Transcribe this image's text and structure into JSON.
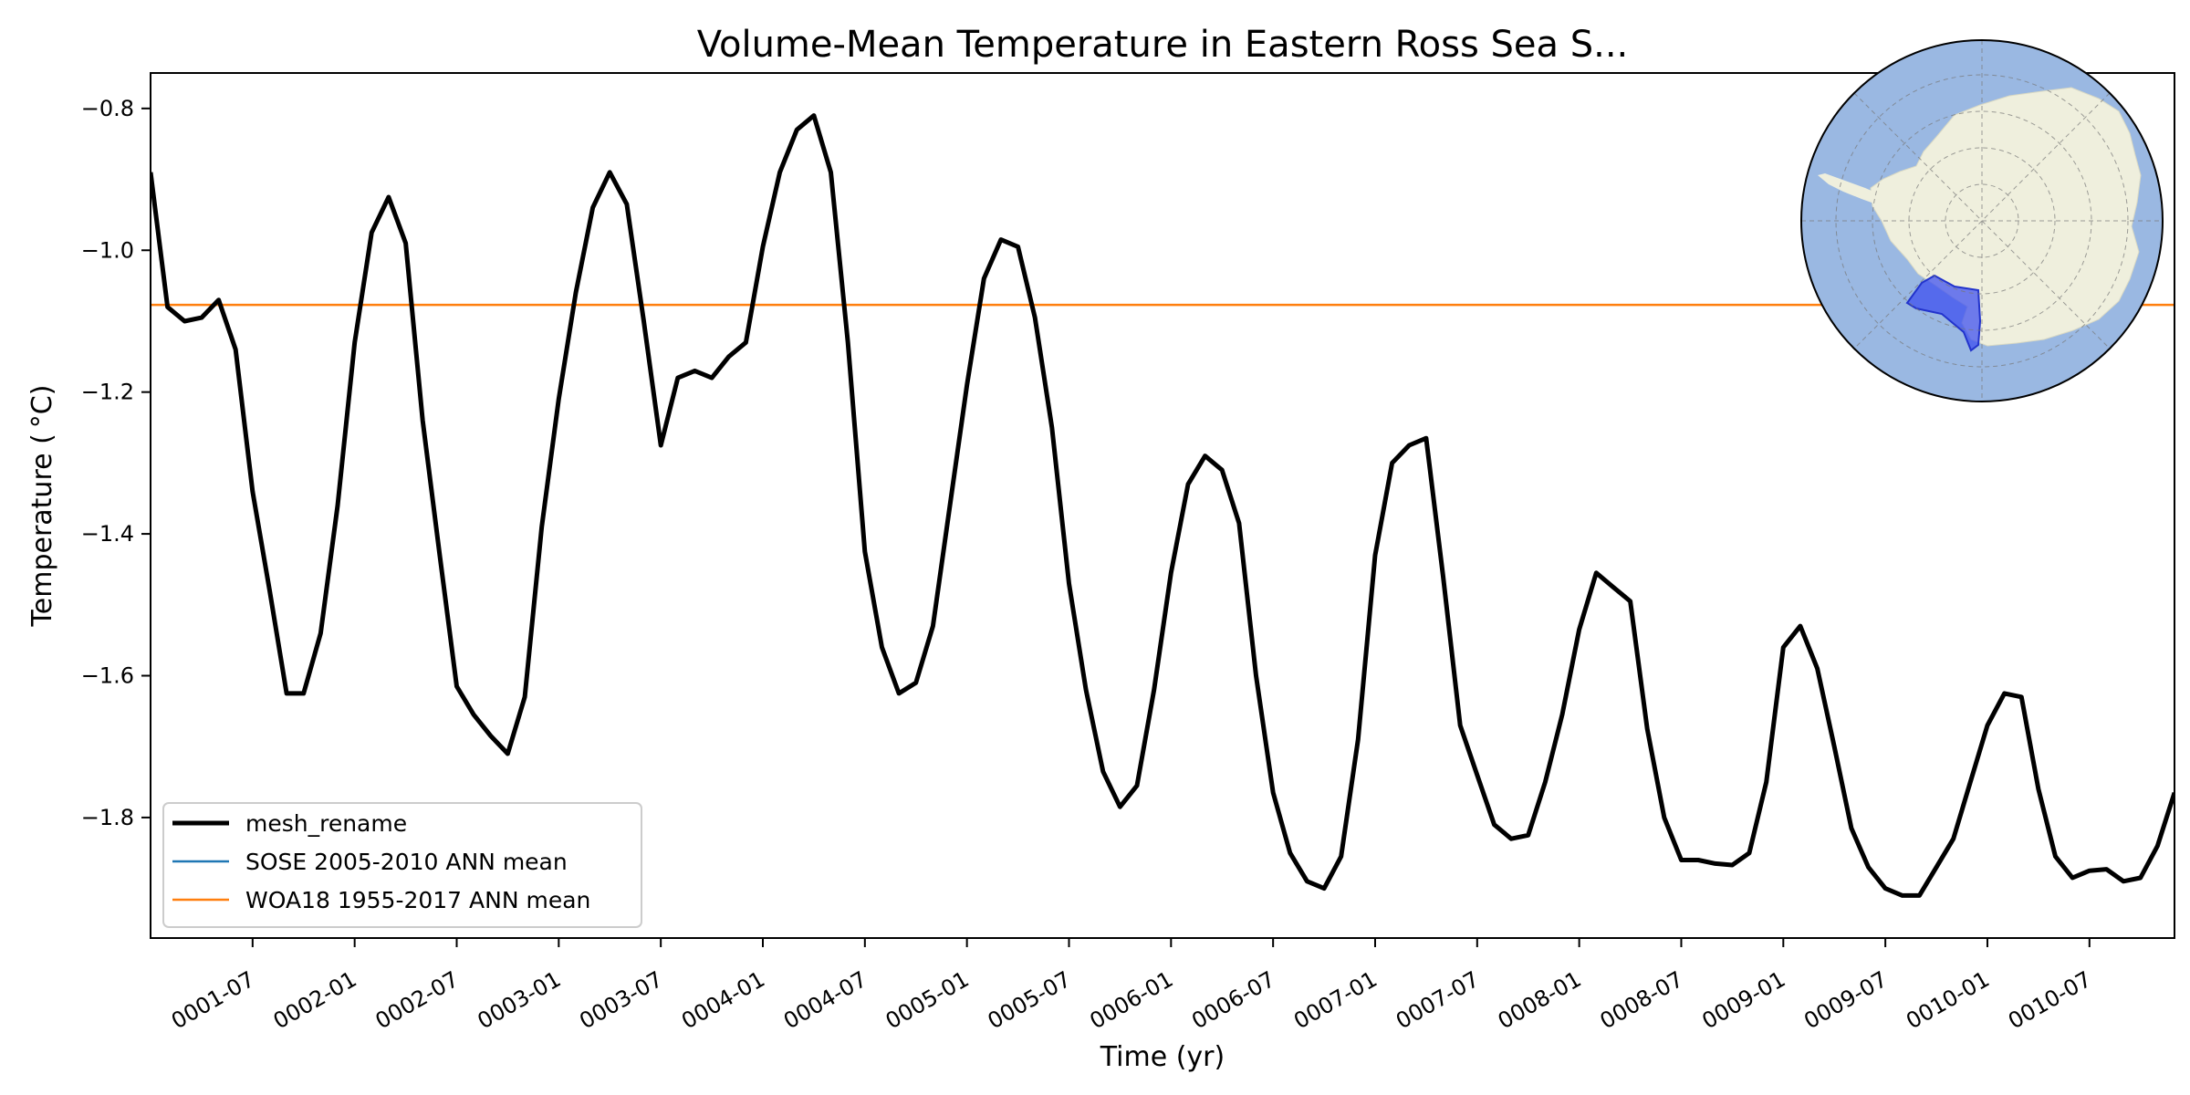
{
  "chart_data": {
    "type": "line",
    "title": "Volume-Mean Temperature in Eastern Ross Sea S...",
    "xlabel": "Time (yr)",
    "ylabel": "Temperature ( °C)",
    "xlim": [
      "0001-01",
      "0010-12"
    ],
    "ylim": [
      -1.97,
      -0.75
    ],
    "grid": false,
    "legend_position": "lower-left",
    "x_ticks": [
      "0001-07",
      "0002-01",
      "0002-07",
      "0003-01",
      "0003-07",
      "0004-01",
      "0004-07",
      "0005-01",
      "0005-07",
      "0006-01",
      "0006-07",
      "0007-01",
      "0007-07",
      "0008-01",
      "0008-07",
      "0009-01",
      "0009-07",
      "0010-01",
      "0010-07"
    ],
    "y_ticks": [
      -1.8,
      -1.6,
      -1.4,
      -1.2,
      -1.0,
      -0.8
    ],
    "y_tick_labels": [
      "−1.8",
      "−1.6",
      "−1.4",
      "−1.2",
      "−1.0",
      "−0.8"
    ],
    "series": [
      {
        "name": "mesh_rename",
        "color": "#000000",
        "values": [
          -0.89,
          -1.08,
          -1.1,
          -1.095,
          -1.07,
          -1.14,
          -1.34,
          -1.48,
          -1.625,
          -1.625,
          -1.54,
          -1.36,
          -1.13,
          -0.975,
          -0.925,
          -0.99,
          -1.24,
          -1.43,
          -1.615,
          -1.655,
          -1.685,
          -1.71,
          -1.63,
          -1.39,
          -1.21,
          -1.06,
          -0.94,
          -0.89,
          -0.935,
          -1.1,
          -1.275,
          -1.18,
          -1.17,
          -1.18,
          -1.15,
          -1.13,
          -0.995,
          -0.89,
          -0.83,
          -0.81,
          -0.89,
          -1.13,
          -1.425,
          -1.56,
          -1.625,
          -1.61,
          -1.53,
          -1.36,
          -1.19,
          -1.04,
          -0.985,
          -0.995,
          -1.095,
          -1.25,
          -1.47,
          -1.62,
          -1.735,
          -1.785,
          -1.755,
          -1.62,
          -1.455,
          -1.33,
          -1.29,
          -1.31,
          -1.385,
          -1.6,
          -1.765,
          -1.85,
          -1.89,
          -1.9,
          -1.855,
          -1.69,
          -1.43,
          -1.3,
          -1.275,
          -1.265,
          -1.46,
          -1.67,
          -1.74,
          -1.81,
          -1.83,
          -1.825,
          -1.75,
          -1.655,
          -1.535,
          -1.455,
          -1.475,
          -1.495,
          -1.675,
          -1.8,
          -1.86,
          -1.86,
          -1.865,
          -1.867,
          -1.85,
          -1.75,
          -1.56,
          -1.53,
          -1.59,
          -1.7,
          -1.815,
          -1.87,
          -1.9,
          -1.91,
          -1.91,
          -1.87,
          -1.83,
          -1.75,
          -1.67,
          -1.625,
          -1.63,
          -1.76,
          -1.855,
          -1.885,
          -1.875,
          -1.873,
          -1.89,
          -1.885,
          -1.84,
          -1.765
        ]
      },
      {
        "name": "SOSE 2005-2010 ANN mean",
        "color": "#1f77b4",
        "values": []
      },
      {
        "name": "WOA18 1955-2017 ANN mean",
        "color": "#ff7f0e",
        "values": [
          -1.077
        ]
      }
    ],
    "inset_map": {
      "projection": "south-polar",
      "ocean_color": "#9ab8e2",
      "land_color": "#efefdd",
      "region_color": "#3a4cf0"
    }
  }
}
